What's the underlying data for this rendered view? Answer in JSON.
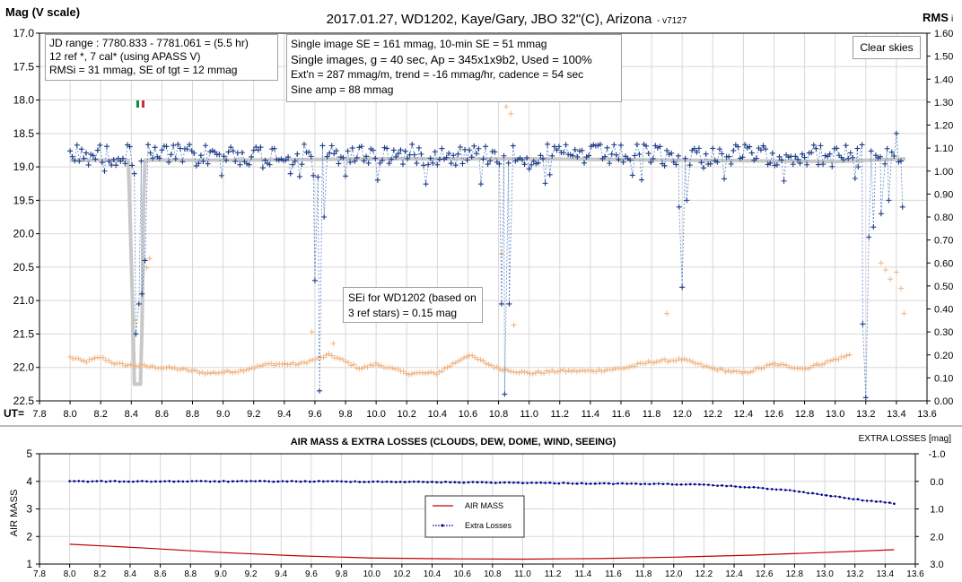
{
  "top_chart": {
    "title": "2017.01.27,  WD1202, Kaye/Gary, JBO 32\"(C), Arizona",
    "version": "- v7127",
    "y_left_label": "Mag (V scale)",
    "y_right_label": "RMS",
    "y_right_suffix": "i",
    "x_prefix": "UT=",
    "x_ticks": [
      "7.8",
      "8.0",
      "8.2",
      "8.4",
      "8.6",
      "8.8",
      "9.0",
      "9.2",
      "9.4",
      "9.6",
      "9.8",
      "10.0",
      "10.2",
      "10.4",
      "10.6",
      "10.8",
      "11.0",
      "11.2",
      "11.4",
      "11.6",
      "11.8",
      "12.0",
      "12.2",
      "12.4",
      "12.6",
      "12.8",
      "13.0",
      "13.2",
      "13.4",
      "13.6"
    ],
    "y_left_ticks": [
      "17.0",
      "17.5",
      "18.0",
      "18.5",
      "19.0",
      "19.5",
      "20.0",
      "20.5",
      "21.0",
      "21.5",
      "22.0",
      "22.5"
    ],
    "y_right_ticks": [
      "1.60",
      "1.50",
      "1.40",
      "1.30",
      "1.20",
      "1.10",
      "1.00",
      "0.90",
      "0.80",
      "0.70",
      "0.60",
      "0.50",
      "0.40",
      "0.30",
      "0.20",
      "0.10",
      "0.00"
    ],
    "info_box_1": [
      "JD range  : 7780.833 - 7781.061  = (5.5 hr)",
      "12 ref *, 7 cal* (using APASS  V)",
      "RMSi = 31 mmag, SE of tgt = 12 mmag"
    ],
    "info_box_2": [
      "Single image SE = 161 mmag, 10-min SE = 51 mmag",
      "Single images, g = 40 sec, Ap = 345x1x9b2, Used = 100%",
      "Ext'n = 287 mmag/m, trend = -16 mmag/hr, cadence = 54 sec",
      "Sine amp = 88 mmag"
    ],
    "sei_note": [
      "SEi for WD1202 (based on",
      "3 ref stars) = 0.15 mag"
    ],
    "clear_skies_button": "Clear skies"
  },
  "bottom_chart": {
    "title": "AIR MASS & EXTRA LOSSES (CLOUDS, DEW, DOME, WIND, SEEING)",
    "y_left_label": "AIR MASS",
    "y_right_label": "EXTRA LOSSES [mag]",
    "x_ticks": [
      "7.8",
      "8.0",
      "8.2",
      "8.4",
      "8.6",
      "8.8",
      "9.0",
      "9.2",
      "9.4",
      "9.6",
      "9.8",
      "10.0",
      "10.2",
      "10.4",
      "10.6",
      "10.8",
      "11.0",
      "11.2",
      "11.4",
      "11.6",
      "11.8",
      "12.0",
      "12.2",
      "12.4",
      "12.6",
      "12.8",
      "13.0",
      "13.2",
      "13.4",
      "13.6"
    ],
    "y_left_ticks": [
      "5",
      "4",
      "3",
      "2",
      "1"
    ],
    "y_right_ticks": [
      "-1.0",
      "0.0",
      "1.0",
      "2.0",
      "3.0"
    ],
    "legend": [
      "AIR MASS",
      "Extra Losses"
    ]
  },
  "colors": {
    "mag_points": "#1f3c88",
    "mag_line": "#5a86c8",
    "model_line": "#c8c8c8",
    "rms_points": "#f0b482",
    "airmass": "#c00000",
    "losses": "#00008b",
    "flag_green": "#009246",
    "flag_red": "#ce2b37"
  },
  "chart_data": [
    {
      "type": "scatter",
      "x_range": [
        7.8,
        13.6
      ],
      "ylim_left": [
        17.0,
        22.5
      ],
      "ylim_right": [
        0.0,
        1.6
      ],
      "mag_baseline": 18.82,
      "model": {
        "x": [
          8.0,
          8.38,
          8.39,
          8.41,
          8.42,
          8.46,
          8.47,
          8.48,
          8.49,
          8.6,
          9.0,
          10.0,
          11.0,
          12.0,
          13.0,
          13.46
        ],
        "y": [
          18.9,
          18.9,
          19.6,
          21.2,
          22.25,
          22.25,
          21.4,
          19.6,
          18.9,
          18.9,
          18.9,
          18.88,
          18.88,
          18.9,
          18.92,
          18.88
        ]
      },
      "mag_dips": [
        {
          "x": 8.43,
          "y": 21.5
        },
        {
          "x": 8.45,
          "y": 21.05
        },
        {
          "x": 8.47,
          "y": 20.9
        },
        {
          "x": 8.49,
          "y": 20.4
        },
        {
          "x": 9.6,
          "y": 20.7
        },
        {
          "x": 9.63,
          "y": 22.35
        },
        {
          "x": 9.66,
          "y": 19.75
        },
        {
          "x": 10.82,
          "y": 21.05
        },
        {
          "x": 10.84,
          "y": 22.4
        },
        {
          "x": 10.87,
          "y": 21.05
        },
        {
          "x": 11.98,
          "y": 19.6
        },
        {
          "x": 12.0,
          "y": 20.8
        },
        {
          "x": 12.03,
          "y": 19.5
        },
        {
          "x": 13.15,
          "y": 19.0
        },
        {
          "x": 13.18,
          "y": 21.35
        },
        {
          "x": 13.2,
          "y": 22.45
        },
        {
          "x": 13.22,
          "y": 20.05
        },
        {
          "x": 13.25,
          "y": 19.9
        },
        {
          "x": 13.3,
          "y": 19.7
        },
        {
          "x": 13.35,
          "y": 19.5
        },
        {
          "x": 13.4,
          "y": 18.5
        },
        {
          "x": 13.44,
          "y": 19.6
        }
      ],
      "rms_envelope": {
        "x": [
          8.0,
          8.1,
          8.2,
          8.3,
          8.5,
          8.7,
          8.9,
          9.1,
          9.3,
          9.5,
          9.7,
          9.9,
          10.0,
          10.2,
          10.4,
          10.6,
          10.8,
          11.0,
          11.2,
          11.4,
          11.6,
          11.8,
          12.0,
          12.2,
          12.4,
          12.6,
          12.8,
          13.0,
          13.1
        ],
        "y": [
          0.19,
          0.17,
          0.19,
          0.16,
          0.15,
          0.14,
          0.12,
          0.13,
          0.16,
          0.16,
          0.2,
          0.14,
          0.16,
          0.12,
          0.12,
          0.2,
          0.14,
          0.12,
          0.13,
          0.13,
          0.14,
          0.17,
          0.18,
          0.14,
          0.12,
          0.16,
          0.14,
          0.18,
          0.2
        ]
      },
      "rms_outliers": [
        {
          "x": 8.42,
          "y": 0.35
        },
        {
          "x": 8.5,
          "y": 0.58
        },
        {
          "x": 8.52,
          "y": 0.62
        },
        {
          "x": 9.58,
          "y": 0.3
        },
        {
          "x": 9.72,
          "y": 0.25
        },
        {
          "x": 10.82,
          "y": 0.64
        },
        {
          "x": 10.85,
          "y": 1.28
        },
        {
          "x": 10.88,
          "y": 1.25
        },
        {
          "x": 10.9,
          "y": 0.33
        },
        {
          "x": 11.9,
          "y": 0.38
        },
        {
          "x": 13.3,
          "y": 0.6
        },
        {
          "x": 13.33,
          "y": 0.57
        },
        {
          "x": 13.36,
          "y": 0.53
        },
        {
          "x": 13.4,
          "y": 0.56
        },
        {
          "x": 13.43,
          "y": 0.49
        },
        {
          "x": 13.45,
          "y": 0.38
        }
      ]
    },
    {
      "type": "line",
      "x_range": [
        7.8,
        13.6
      ],
      "ylim_left": [
        1,
        5
      ],
      "ylim_right": [
        -1.0,
        3.0
      ],
      "series": [
        {
          "name": "AIR MASS",
          "x": [
            8.0,
            8.5,
            9.0,
            9.5,
            10.0,
            10.5,
            11.0,
            11.5,
            12.0,
            12.5,
            13.0,
            13.46
          ],
          "y": [
            1.72,
            1.58,
            1.42,
            1.3,
            1.22,
            1.19,
            1.18,
            1.2,
            1.25,
            1.32,
            1.42,
            1.52
          ]
        },
        {
          "name": "Extra Losses",
          "x": [
            8.0,
            8.5,
            9.0,
            9.5,
            10.0,
            10.5,
            11.0,
            11.5,
            12.0,
            12.2,
            12.4,
            12.6,
            12.8,
            13.0,
            13.2,
            13.46
          ],
          "y": [
            0.0,
            0.0,
            0.0,
            0.0,
            0.01,
            0.03,
            0.05,
            0.08,
            0.1,
            0.13,
            0.18,
            0.25,
            0.35,
            0.5,
            0.65,
            0.8
          ]
        }
      ]
    }
  ]
}
